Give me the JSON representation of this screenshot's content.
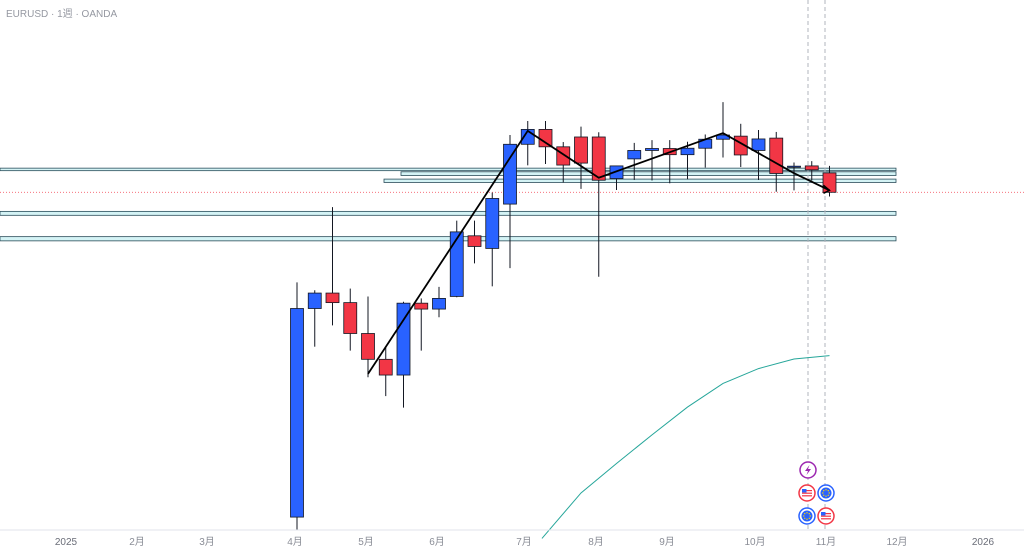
{
  "chart_title": "EURUSD · 1週 · OANDA",
  "chart_data": {
    "type": "candlestick",
    "title": "EURUSD · 1週 · OANDA",
    "xlabel": "",
    "ylabel": "",
    "x_tick_labels": [
      "2025",
      "2月",
      "3月",
      "4月",
      "5月",
      "6月",
      "7月",
      "8月",
      "9月",
      "10月",
      "11月",
      "12月",
      "2026"
    ],
    "ylim": [
      1.0187,
      1.2075
    ],
    "grid": false,
    "colors": {
      "up": "#2962ff",
      "down": "#f23645",
      "zone_fill": "#d4f3f5",
      "zone_border": "#2a4d5a",
      "ma": "#26a69a",
      "trend": "#000000",
      "price_line": "#f23645"
    },
    "candles": [
      {
        "week": 1,
        "open": 1.0233,
        "high": 1.1069,
        "low": 1.0187,
        "close": 1.0976
      },
      {
        "week": 2,
        "open": 1.0976,
        "high": 1.1041,
        "low": 1.084,
        "close": 1.1031
      },
      {
        "week": 3,
        "open": 1.1031,
        "high": 1.1337,
        "low": 1.0916,
        "close": 1.0997
      },
      {
        "week": 4,
        "open": 1.0997,
        "high": 1.1047,
        "low": 1.0826,
        "close": 1.0887
      },
      {
        "week": 5,
        "open": 1.0887,
        "high": 1.1019,
        "low": 1.0731,
        "close": 1.0795
      },
      {
        "week": 6,
        "open": 1.0795,
        "high": 1.0838,
        "low": 1.0664,
        "close": 1.0739
      },
      {
        "week": 7,
        "open": 1.0739,
        "high": 1.1,
        "low": 1.0623,
        "close": 1.0995
      },
      {
        "week": 8,
        "open": 1.0995,
        "high": 1.1012,
        "low": 1.0826,
        "close": 1.0974
      },
      {
        "week": 9,
        "open": 1.0974,
        "high": 1.1053,
        "low": 1.0945,
        "close": 1.1012
      },
      {
        "week": 10,
        "open": 1.1019,
        "high": 1.1289,
        "low": 1.1016,
        "close": 1.1249
      },
      {
        "week": 11,
        "open": 1.1235,
        "high": 1.1289,
        "low": 1.1137,
        "close": 1.1197
      },
      {
        "week": 12,
        "open": 1.119,
        "high": 1.1389,
        "low": 1.1055,
        "close": 1.1368
      },
      {
        "week": 13,
        "open": 1.1348,
        "high": 1.1594,
        "low": 1.112,
        "close": 1.1561
      },
      {
        "week": 14,
        "open": 1.1561,
        "high": 1.1644,
        "low": 1.1486,
        "close": 1.1614
      },
      {
        "week": 15,
        "open": 1.1614,
        "high": 1.1644,
        "low": 1.1491,
        "close": 1.1552
      },
      {
        "week": 16,
        "open": 1.1552,
        "high": 1.1569,
        "low": 1.1425,
        "close": 1.1487
      },
      {
        "week": 17,
        "open": 1.1587,
        "high": 1.1624,
        "low": 1.1402,
        "close": 1.1494
      },
      {
        "week": 18,
        "open": 1.1587,
        "high": 1.1604,
        "low": 1.1089,
        "close": 1.1433
      },
      {
        "week": 19,
        "open": 1.1439,
        "high": 1.1485,
        "low": 1.1398,
        "close": 1.1484
      },
      {
        "week": 20,
        "open": 1.1509,
        "high": 1.1566,
        "low": 1.1434,
        "close": 1.1539
      },
      {
        "week": 21,
        "open": 1.1539,
        "high": 1.1576,
        "low": 1.1432,
        "close": 1.1546
      },
      {
        "week": 22,
        "open": 1.1546,
        "high": 1.1576,
        "low": 1.1422,
        "close": 1.1524
      },
      {
        "week": 23,
        "open": 1.1524,
        "high": 1.157,
        "low": 1.1436,
        "close": 1.1547
      },
      {
        "week": 24,
        "open": 1.1547,
        "high": 1.1596,
        "low": 1.1478,
        "close": 1.1579
      },
      {
        "week": 25,
        "open": 1.1579,
        "high": 1.1711,
        "low": 1.1514,
        "close": 1.1594
      },
      {
        "week": 26,
        "open": 1.159,
        "high": 1.1634,
        "low": 1.148,
        "close": 1.1523
      },
      {
        "week": 27,
        "open": 1.1539,
        "high": 1.1612,
        "low": 1.1434,
        "close": 1.158
      },
      {
        "week": 28,
        "open": 1.1583,
        "high": 1.1605,
        "low": 1.1392,
        "close": 1.1457
      },
      {
        "week": 29,
        "open": 1.1479,
        "high": 1.1496,
        "low": 1.1397,
        "close": 1.1483
      },
      {
        "week": 30,
        "open": 1.1484,
        "high": 1.1501,
        "low": 1.1432,
        "close": 1.147
      },
      {
        "week": 31,
        "open": 1.1459,
        "high": 1.1484,
        "low": 1.1375,
        "close": 1.139
      }
    ],
    "zones": [
      {
        "top": 1.1476,
        "bottom": 1.1467
      },
      {
        "top": 1.1463,
        "bottom": 1.145
      },
      {
        "top": 1.1437,
        "bottom": 1.1425
      },
      {
        "top": 1.1322,
        "bottom": 1.1308
      },
      {
        "top": 1.1232,
        "bottom": 1.1217
      }
    ],
    "current_price": 1.139,
    "ma_series": {
      "weeks": [
        14.8,
        17,
        19,
        21,
        23,
        25,
        27,
        29,
        31
      ],
      "values": [
        1.0157,
        1.0319,
        1.0424,
        1.0526,
        1.0625,
        1.0709,
        1.0762,
        1.0796,
        1.0808
      ]
    },
    "trend_line": {
      "weeks": [
        5,
        14,
        18,
        25,
        29,
        31
      ],
      "values": [
        1.0743,
        1.1609,
        1.1442,
        1.1601,
        1.1458,
        1.1397
      ]
    },
    "event_markers": {
      "row1": {
        "icon": "lightning-icon",
        "color": "#9c27b0"
      },
      "row2": [
        {
          "icon": "us-flag-icon",
          "color": "#f23645"
        },
        {
          "icon": "eu-flag-icon",
          "color": "#2962ff"
        }
      ],
      "row3": [
        {
          "icon": "eu-flag-icon",
          "color": "#2962ff"
        },
        {
          "icon": "us-flag-icon",
          "color": "#f23645"
        }
      ]
    }
  }
}
